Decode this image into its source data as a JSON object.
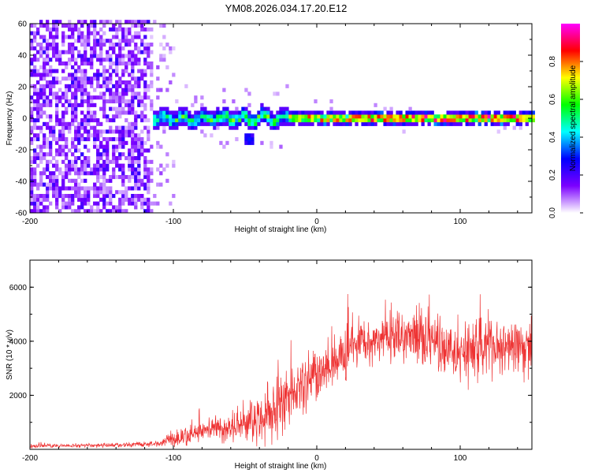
{
  "title": "YM08.2026.034.17.20.E12",
  "chart_data": [
    {
      "type": "heatmap",
      "xlabel": "Height of straight line (km)",
      "ylabel": "Frequency (Hz)",
      "xlim": [
        -200,
        150
      ],
      "ylim": [
        -60,
        60
      ],
      "xticks": [
        -200,
        -100,
        0,
        100
      ],
      "xtick_labels": [
        "-200",
        "-100",
        "0",
        "100"
      ],
      "yticks": [
        -60,
        -40,
        -20,
        0,
        20,
        40,
        60
      ],
      "ytick_labels": [
        "-60",
        "-40",
        "-20",
        "0",
        "20",
        "40",
        "60"
      ],
      "colorbar": {
        "label": "Normalized spectral amplitude",
        "range": [
          0,
          1
        ],
        "ticks": [
          0.0,
          0.2,
          0.4,
          0.6,
          0.8
        ],
        "tick_labels": [
          "0.0",
          "0.2",
          "0.4",
          "0.6",
          "0.8"
        ],
        "colors": [
          "#ffffff",
          "#7b00ff",
          "#0000ff",
          "#00ffff",
          "#00ff00",
          "#ffff00",
          "#ff0000",
          "#ff00ff"
        ]
      },
      "features": {
        "noise_region_x": [
          -200,
          -100
        ],
        "signal_onset_x": -115,
        "signal_center_freq_hz": 0,
        "signal_halfwidth_hz": 4
      }
    },
    {
      "type": "line",
      "xlabel": "Height of straight line (km)",
      "ylabel": "SNR (10 * v/v)",
      "xlim": [
        -200,
        150
      ],
      "ylim": [
        0,
        7000
      ],
      "xticks": [
        -200,
        -100,
        0,
        100
      ],
      "xtick_labels": [
        "-200",
        "-100",
        "0",
        "100"
      ],
      "yticks": [
        2000,
        4000,
        6000
      ],
      "ytick_labels": [
        "2000",
        "4000",
        "6000"
      ],
      "color": "#ee3333",
      "envelope": {
        "x": [
          -200,
          -150,
          -110,
          -100,
          -80,
          -60,
          -45,
          -35,
          -25,
          -18,
          -10,
          0,
          10,
          20,
          25,
          35,
          50,
          70,
          80,
          90,
          100,
          110,
          120,
          130,
          140,
          150
        ],
        "mean": [
          120,
          150,
          200,
          400,
          650,
          800,
          1000,
          1400,
          1600,
          2000,
          2500,
          2800,
          3100,
          3500,
          3900,
          4000,
          4100,
          4200,
          4000,
          3700,
          3500,
          3800,
          3900,
          3800,
          3900,
          3700
        ],
        "spread": [
          60,
          70,
          90,
          250,
          350,
          450,
          650,
          1000,
          1000,
          900,
          900,
          800,
          700,
          800,
          700,
          700,
          800,
          900,
          900,
          800,
          800,
          1100,
          1000,
          900,
          900,
          900
        ]
      }
    }
  ]
}
